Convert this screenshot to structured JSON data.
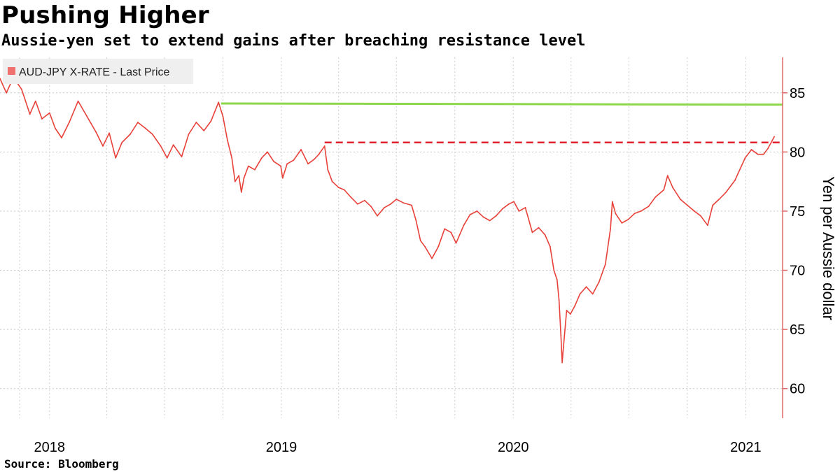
{
  "title": "Pushing Higher",
  "subtitle": "Aussie-yen set to extend gains after breaching resistance level",
  "source": "Source: Bloomberg",
  "chart_data": {
    "type": "line",
    "title": "Pushing Higher",
    "subtitle": "Aussie-yen set to extend gains after breaching resistance level",
    "xlabel": "",
    "ylabel": "Yen per Aussie dollar",
    "ylim": [
      57.5,
      88
    ],
    "y_ticks": [
      60,
      65,
      70,
      75,
      80,
      85
    ],
    "x_range": [
      "2017-10-15",
      "2021-02-28"
    ],
    "x_ticks": [
      {
        "label": "2018",
        "date": "2018-01-01"
      },
      {
        "label": "2019",
        "date": "2019-01-01"
      },
      {
        "label": "2020",
        "date": "2020-01-01"
      },
      {
        "label": "2021",
        "date": "2021-01-01"
      }
    ],
    "grid": true,
    "legend": {
      "position": "top-left",
      "entries": [
        "AUD-JPY X-RATE - Last Price"
      ]
    },
    "colors": {
      "series": "#e8413a",
      "legend_swatch": "#f07070",
      "resistance": "#e0202e",
      "upper_line": "#8ed64a",
      "axis": "#e06666"
    },
    "series": [
      {
        "name": "AUD-JPY X-RATE - Last Price",
        "points": [
          [
            "2017-10-15",
            86.2
          ],
          [
            "2017-10-25",
            85.0
          ],
          [
            "2017-11-05",
            86.3
          ],
          [
            "2017-11-18",
            85.3
          ],
          [
            "2017-12-01",
            83.2
          ],
          [
            "2017-12-10",
            84.3
          ],
          [
            "2017-12-20",
            82.8
          ],
          [
            "2018-01-01",
            83.3
          ],
          [
            "2018-01-10",
            82.0
          ],
          [
            "2018-01-20",
            81.2
          ],
          [
            "2018-02-01",
            82.5
          ],
          [
            "2018-02-15",
            84.3
          ],
          [
            "2018-03-01",
            83.0
          ],
          [
            "2018-03-15",
            81.7
          ],
          [
            "2018-03-26",
            80.5
          ],
          [
            "2018-04-05",
            81.6
          ],
          [
            "2018-04-15",
            79.5
          ],
          [
            "2018-04-25",
            80.8
          ],
          [
            "2018-05-08",
            81.5
          ],
          [
            "2018-05-20",
            82.5
          ],
          [
            "2018-06-01",
            82.0
          ],
          [
            "2018-06-12",
            81.5
          ],
          [
            "2018-06-25",
            80.5
          ],
          [
            "2018-07-05",
            79.5
          ],
          [
            "2018-07-15",
            80.6
          ],
          [
            "2018-07-28",
            79.6
          ],
          [
            "2018-08-08",
            81.5
          ],
          [
            "2018-08-20",
            82.5
          ],
          [
            "2018-09-01",
            81.8
          ],
          [
            "2018-09-12",
            82.6
          ],
          [
            "2018-09-24",
            84.2
          ],
          [
            "2018-10-01",
            83.0
          ],
          [
            "2018-10-08",
            81.0
          ],
          [
            "2018-10-15",
            79.5
          ],
          [
            "2018-10-20",
            77.5
          ],
          [
            "2018-10-26",
            78.0
          ],
          [
            "2018-10-30",
            76.6
          ],
          [
            "2018-11-03",
            77.8
          ],
          [
            "2018-11-10",
            78.8
          ],
          [
            "2018-11-20",
            78.5
          ],
          [
            "2018-12-01",
            79.5
          ],
          [
            "2018-12-10",
            80.0
          ],
          [
            "2018-12-20",
            79.2
          ],
          [
            "2018-12-31",
            78.8
          ],
          [
            "2019-01-03",
            77.8
          ],
          [
            "2019-01-10",
            79.0
          ],
          [
            "2019-01-20",
            79.3
          ],
          [
            "2019-02-01",
            80.2
          ],
          [
            "2019-02-12",
            79.0
          ],
          [
            "2019-02-22",
            79.4
          ],
          [
            "2019-03-01",
            79.8
          ],
          [
            "2019-03-10",
            80.5
          ],
          [
            "2019-03-15",
            78.5
          ],
          [
            "2019-03-22",
            77.5
          ],
          [
            "2019-04-01",
            77.0
          ],
          [
            "2019-04-10",
            76.8
          ],
          [
            "2019-04-20",
            76.2
          ],
          [
            "2019-05-01",
            75.6
          ],
          [
            "2019-05-12",
            75.9
          ],
          [
            "2019-05-22",
            75.4
          ],
          [
            "2019-06-01",
            74.6
          ],
          [
            "2019-06-12",
            75.3
          ],
          [
            "2019-06-22",
            75.6
          ],
          [
            "2019-07-01",
            76.0
          ],
          [
            "2019-07-12",
            75.7
          ],
          [
            "2019-07-25",
            75.5
          ],
          [
            "2019-08-01",
            74.2
          ],
          [
            "2019-08-08",
            72.5
          ],
          [
            "2019-08-15",
            72.0
          ],
          [
            "2019-08-26",
            71.0
          ],
          [
            "2019-09-05",
            72.0
          ],
          [
            "2019-09-15",
            73.5
          ],
          [
            "2019-09-25",
            73.2
          ],
          [
            "2019-10-03",
            72.3
          ],
          [
            "2019-10-15",
            73.8
          ],
          [
            "2019-10-25",
            74.7
          ],
          [
            "2019-11-05",
            75.0
          ],
          [
            "2019-11-15",
            74.5
          ],
          [
            "2019-11-25",
            74.2
          ],
          [
            "2019-12-05",
            74.6
          ],
          [
            "2019-12-15",
            75.2
          ],
          [
            "2019-12-25",
            75.6
          ],
          [
            "2020-01-02",
            75.8
          ],
          [
            "2020-01-10",
            75.0
          ],
          [
            "2020-01-20",
            75.3
          ],
          [
            "2020-01-31",
            73.2
          ],
          [
            "2020-02-10",
            73.6
          ],
          [
            "2020-02-20",
            73.0
          ],
          [
            "2020-02-28",
            72.0
          ],
          [
            "2020-03-05",
            70.0
          ],
          [
            "2020-03-10",
            69.2
          ],
          [
            "2020-03-13",
            67.5
          ],
          [
            "2020-03-16",
            64.5
          ],
          [
            "2020-03-18",
            62.2
          ],
          [
            "2020-03-20",
            63.5
          ],
          [
            "2020-03-25",
            66.6
          ],
          [
            "2020-03-31",
            66.3
          ],
          [
            "2020-04-07",
            67.0
          ],
          [
            "2020-04-15",
            68.0
          ],
          [
            "2020-04-25",
            68.6
          ],
          [
            "2020-05-05",
            68.0
          ],
          [
            "2020-05-15",
            69.0
          ],
          [
            "2020-05-25",
            70.5
          ],
          [
            "2020-06-02",
            73.5
          ],
          [
            "2020-06-05",
            75.8
          ],
          [
            "2020-06-10",
            74.8
          ],
          [
            "2020-06-20",
            74.0
          ],
          [
            "2020-06-30",
            74.3
          ],
          [
            "2020-07-10",
            74.8
          ],
          [
            "2020-07-20",
            75.0
          ],
          [
            "2020-08-01",
            75.4
          ],
          [
            "2020-08-12",
            76.2
          ],
          [
            "2020-08-25",
            76.8
          ],
          [
            "2020-08-31",
            78.0
          ],
          [
            "2020-09-08",
            77.0
          ],
          [
            "2020-09-20",
            76.0
          ],
          [
            "2020-10-01",
            75.5
          ],
          [
            "2020-10-12",
            75.0
          ],
          [
            "2020-10-22",
            74.6
          ],
          [
            "2020-11-02",
            73.8
          ],
          [
            "2020-11-10",
            75.5
          ],
          [
            "2020-11-20",
            76.0
          ],
          [
            "2020-12-01",
            76.6
          ],
          [
            "2020-12-15",
            77.6
          ],
          [
            "2020-12-31",
            79.5
          ],
          [
            "2021-01-10",
            80.2
          ],
          [
            "2021-01-20",
            79.8
          ],
          [
            "2021-01-29",
            79.8
          ],
          [
            "2021-02-05",
            80.3
          ],
          [
            "2021-02-15",
            81.3
          ]
        ]
      }
    ],
    "reference_lines": [
      {
        "kind": "upper",
        "style": "solid",
        "y_start": 84.1,
        "y_end": 84.0,
        "x_start": "2018-09-28",
        "x_end": "2021-02-28"
      },
      {
        "kind": "resistance",
        "style": "dashed",
        "y": 80.8,
        "x_start": "2019-03-10",
        "x_end": "2021-02-28"
      }
    ]
  }
}
